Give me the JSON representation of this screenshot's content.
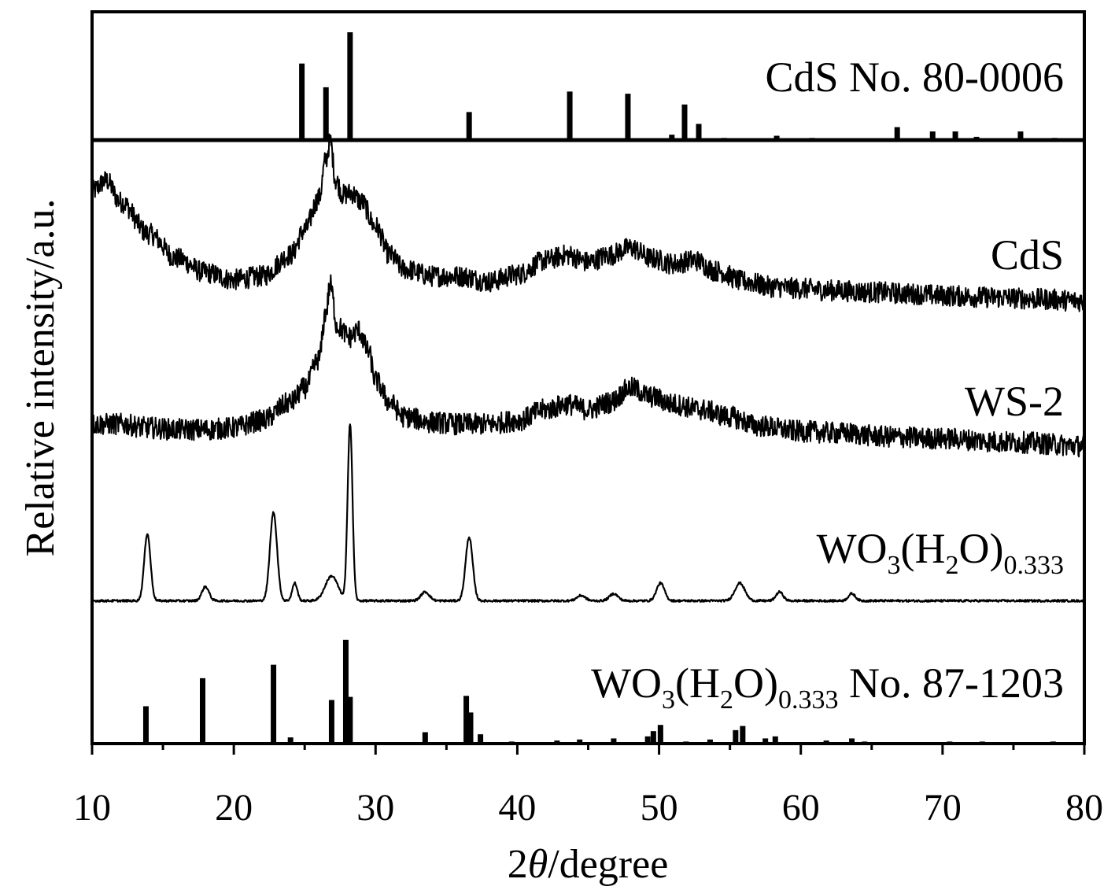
{
  "chart_data": {
    "type": "line",
    "xlabel_prefix": "2",
    "xlabel_theta": "θ",
    "xlabel_suffix": "/degree",
    "ylabel": "Relative intensity/a.u.",
    "xlim": [
      10,
      80
    ],
    "xticks": [
      10,
      20,
      30,
      40,
      50,
      60,
      70,
      80
    ],
    "panels": [
      {
        "name": "ref-cds",
        "label_main": "CdS  No. 80-0006",
        "type": "stick",
        "sticks": [
          {
            "x": 24.8,
            "y": 0.71
          },
          {
            "x": 26.5,
            "y": 0.49
          },
          {
            "x": 28.2,
            "y": 1.0
          },
          {
            "x": 36.6,
            "y": 0.26
          },
          {
            "x": 43.7,
            "y": 0.45
          },
          {
            "x": 47.8,
            "y": 0.43
          },
          {
            "x": 50.9,
            "y": 0.05
          },
          {
            "x": 51.8,
            "y": 0.33
          },
          {
            "x": 52.8,
            "y": 0.15
          },
          {
            "x": 54.6,
            "y": 0.02
          },
          {
            "x": 58.3,
            "y": 0.04
          },
          {
            "x": 60.8,
            "y": 0.02
          },
          {
            "x": 66.8,
            "y": 0.12
          },
          {
            "x": 69.3,
            "y": 0.08
          },
          {
            "x": 70.9,
            "y": 0.08
          },
          {
            "x": 72.4,
            "y": 0.03
          },
          {
            "x": 75.5,
            "y": 0.08
          },
          {
            "x": 77.9,
            "y": 0.02
          }
        ]
      },
      {
        "name": "traces",
        "series": [
          {
            "name": "CdS",
            "label_main": "CdS",
            "noise": 0.06,
            "points": [
              [
                10,
                0.72
              ],
              [
                11,
                0.78
              ],
              [
                12,
                0.66
              ],
              [
                14,
                0.48
              ],
              [
                16,
                0.34
              ],
              [
                18,
                0.26
              ],
              [
                20,
                0.22
              ],
              [
                22,
                0.24
              ],
              [
                24,
                0.36
              ],
              [
                25,
                0.5
              ],
              [
                26,
                0.68
              ],
              [
                26.5,
                0.9
              ],
              [
                26.8,
                1.0
              ],
              [
                27.2,
                0.78
              ],
              [
                27.7,
                0.7
              ],
              [
                28.3,
                0.71
              ],
              [
                29,
                0.66
              ],
              [
                30,
                0.52
              ],
              [
                31,
                0.36
              ],
              [
                32,
                0.28
              ],
              [
                34,
                0.24
              ],
              [
                36,
                0.24
              ],
              [
                38,
                0.21
              ],
              [
                40,
                0.25
              ],
              [
                42,
                0.33
              ],
              [
                43.5,
                0.36
              ],
              [
                45,
                0.32
              ],
              [
                46.5,
                0.36
              ],
              [
                48,
                0.4
              ],
              [
                49.5,
                0.34
              ],
              [
                51,
                0.31
              ],
              [
                52.5,
                0.33
              ],
              [
                54,
                0.27
              ],
              [
                56,
                0.21
              ],
              [
                58,
                0.18
              ],
              [
                60,
                0.17
              ],
              [
                62,
                0.16
              ],
              [
                65,
                0.15
              ],
              [
                68,
                0.14
              ],
              [
                70,
                0.13
              ],
              [
                74,
                0.12
              ],
              [
                77,
                0.11
              ],
              [
                80,
                0.1
              ]
            ]
          },
          {
            "name": "WS-2",
            "label_main": "WS-2",
            "noise": 0.06,
            "points": [
              [
                10,
                0.2
              ],
              [
                12,
                0.2
              ],
              [
                14,
                0.18
              ],
              [
                16,
                0.17
              ],
              [
                18,
                0.17
              ],
              [
                20,
                0.18
              ],
              [
                22,
                0.22
              ],
              [
                24,
                0.32
              ],
              [
                25,
                0.4
              ],
              [
                26,
                0.56
              ],
              [
                26.5,
                0.82
              ],
              [
                26.8,
                0.97
              ],
              [
                27.3,
                0.74
              ],
              [
                28.2,
                0.68
              ],
              [
                28.8,
                0.72
              ],
              [
                29.5,
                0.6
              ],
              [
                30,
                0.44
              ],
              [
                31,
                0.32
              ],
              [
                32,
                0.24
              ],
              [
                34,
                0.21
              ],
              [
                36,
                0.2
              ],
              [
                38,
                0.2
              ],
              [
                40,
                0.22
              ],
              [
                42,
                0.28
              ],
              [
                43.5,
                0.31
              ],
              [
                45,
                0.28
              ],
              [
                46.5,
                0.32
              ],
              [
                48,
                0.4
              ],
              [
                49.5,
                0.35
              ],
              [
                51,
                0.31
              ],
              [
                53,
                0.28
              ],
              [
                55,
                0.24
              ],
              [
                57,
                0.19
              ],
              [
                60,
                0.16
              ],
              [
                63,
                0.15
              ],
              [
                66,
                0.13
              ],
              [
                70,
                0.12
              ],
              [
                75,
                0.1
              ],
              [
                80,
                0.08
              ]
            ]
          },
          {
            "name": "WO3-hydrate",
            "label_main": "WO",
            "label_sub1": "3",
            "label_mid": "(H",
            "label_sub2": "2",
            "label_end": "O)",
            "label_sub3": "0.333",
            "noise": 0.006,
            "baseline": 0.02,
            "peaks": [
              {
                "x": 13.9,
                "h": 0.38,
                "w": 0.22
              },
              {
                "x": 18.0,
                "h": 0.08,
                "w": 0.25
              },
              {
                "x": 22.8,
                "h": 0.5,
                "w": 0.25
              },
              {
                "x": 24.3,
                "h": 0.1,
                "w": 0.18
              },
              {
                "x": 26.9,
                "h": 0.14,
                "w": 0.45
              },
              {
                "x": 28.2,
                "h": 1.0,
                "w": 0.17
              },
              {
                "x": 33.5,
                "h": 0.05,
                "w": 0.3
              },
              {
                "x": 36.6,
                "h": 0.36,
                "w": 0.25
              },
              {
                "x": 44.5,
                "h": 0.03,
                "w": 0.3
              },
              {
                "x": 46.8,
                "h": 0.04,
                "w": 0.3
              },
              {
                "x": 50.1,
                "h": 0.1,
                "w": 0.28
              },
              {
                "x": 55.7,
                "h": 0.1,
                "w": 0.35
              },
              {
                "x": 58.5,
                "h": 0.05,
                "w": 0.25
              },
              {
                "x": 63.6,
                "h": 0.04,
                "w": 0.25
              }
            ]
          }
        ]
      },
      {
        "name": "ref-wo3",
        "label_main": "WO",
        "label_sub1": "3",
        "label_mid": "(H",
        "label_sub2": "2",
        "label_end": "O)",
        "label_sub3": "0.333",
        "label_tail": " No. 87-1203",
        "type": "stick",
        "sticks": [
          {
            "x": 13.8,
            "y": 0.36
          },
          {
            "x": 17.8,
            "y": 0.63
          },
          {
            "x": 22.8,
            "y": 0.76
          },
          {
            "x": 24.0,
            "y": 0.06
          },
          {
            "x": 26.9,
            "y": 0.42
          },
          {
            "x": 27.9,
            "y": 1.0
          },
          {
            "x": 28.2,
            "y": 0.45
          },
          {
            "x": 33.5,
            "y": 0.11
          },
          {
            "x": 36.4,
            "y": 0.46
          },
          {
            "x": 36.7,
            "y": 0.3
          },
          {
            "x": 37.4,
            "y": 0.09
          },
          {
            "x": 39.6,
            "y": 0.02
          },
          {
            "x": 42.8,
            "y": 0.03
          },
          {
            "x": 44.4,
            "y": 0.04
          },
          {
            "x": 46.8,
            "y": 0.05
          },
          {
            "x": 49.2,
            "y": 0.07
          },
          {
            "x": 49.6,
            "y": 0.12
          },
          {
            "x": 50.1,
            "y": 0.18
          },
          {
            "x": 51.9,
            "y": 0.02
          },
          {
            "x": 53.6,
            "y": 0.04
          },
          {
            "x": 55.4,
            "y": 0.13
          },
          {
            "x": 55.9,
            "y": 0.17
          },
          {
            "x": 57.5,
            "y": 0.05
          },
          {
            "x": 58.2,
            "y": 0.07
          },
          {
            "x": 61.8,
            "y": 0.03
          },
          {
            "x": 63.6,
            "y": 0.05
          },
          {
            "x": 64.5,
            "y": 0.02
          },
          {
            "x": 70.5,
            "y": 0.02
          },
          {
            "x": 72.8,
            "y": 0.02
          },
          {
            "x": 77.8,
            "y": 0.02
          }
        ]
      }
    ]
  }
}
